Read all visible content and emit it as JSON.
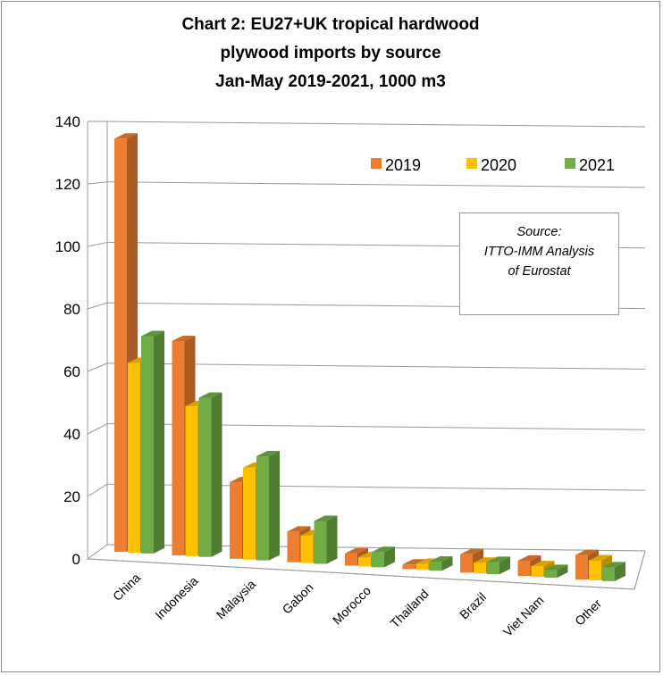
{
  "title": {
    "line1": "Chart 2: EU27+UK tropical  hardwood",
    "line2": "plywood imports by source",
    "line3": "Jan-May 2019-2021, 1000 m3"
  },
  "source_note": {
    "line1": "Source:",
    "line2": "ITTO-IMM Analysis",
    "line3": "of Eurostat"
  },
  "chart_data": {
    "type": "bar",
    "title": "Chart 2: EU27+UK tropical  hardwood plywood imports by source Jan-May 2019-2021, 1000 m3",
    "categories": [
      "China",
      "Indonesia",
      "Malaysia",
      "Gabon",
      "Morocco",
      "Thailand",
      "Brazil",
      "Viet Nam",
      "Other"
    ],
    "series": [
      {
        "name": "2019",
        "color": "#ED7D31",
        "values": [
          135,
          70,
          25,
          10,
          4,
          1.5,
          6,
          5,
          8
        ]
      },
      {
        "name": "2020",
        "color": "#FFC000",
        "values": [
          62,
          49,
          30,
          9,
          3,
          2,
          3.5,
          3.5,
          6.5
        ]
      },
      {
        "name": "2021",
        "color": "#70AD47",
        "values": [
          71,
          52,
          34,
          14,
          5,
          3,
          4,
          2.5,
          4.5
        ]
      }
    ],
    "yticks": [
      "0",
      "20",
      "40",
      "60",
      "80",
      "100",
      "120",
      "140"
    ],
    "ylim": [
      0,
      140
    ],
    "xlabel": "",
    "ylabel": "",
    "legend_position": "top-right",
    "grid": true,
    "three_d": true
  }
}
